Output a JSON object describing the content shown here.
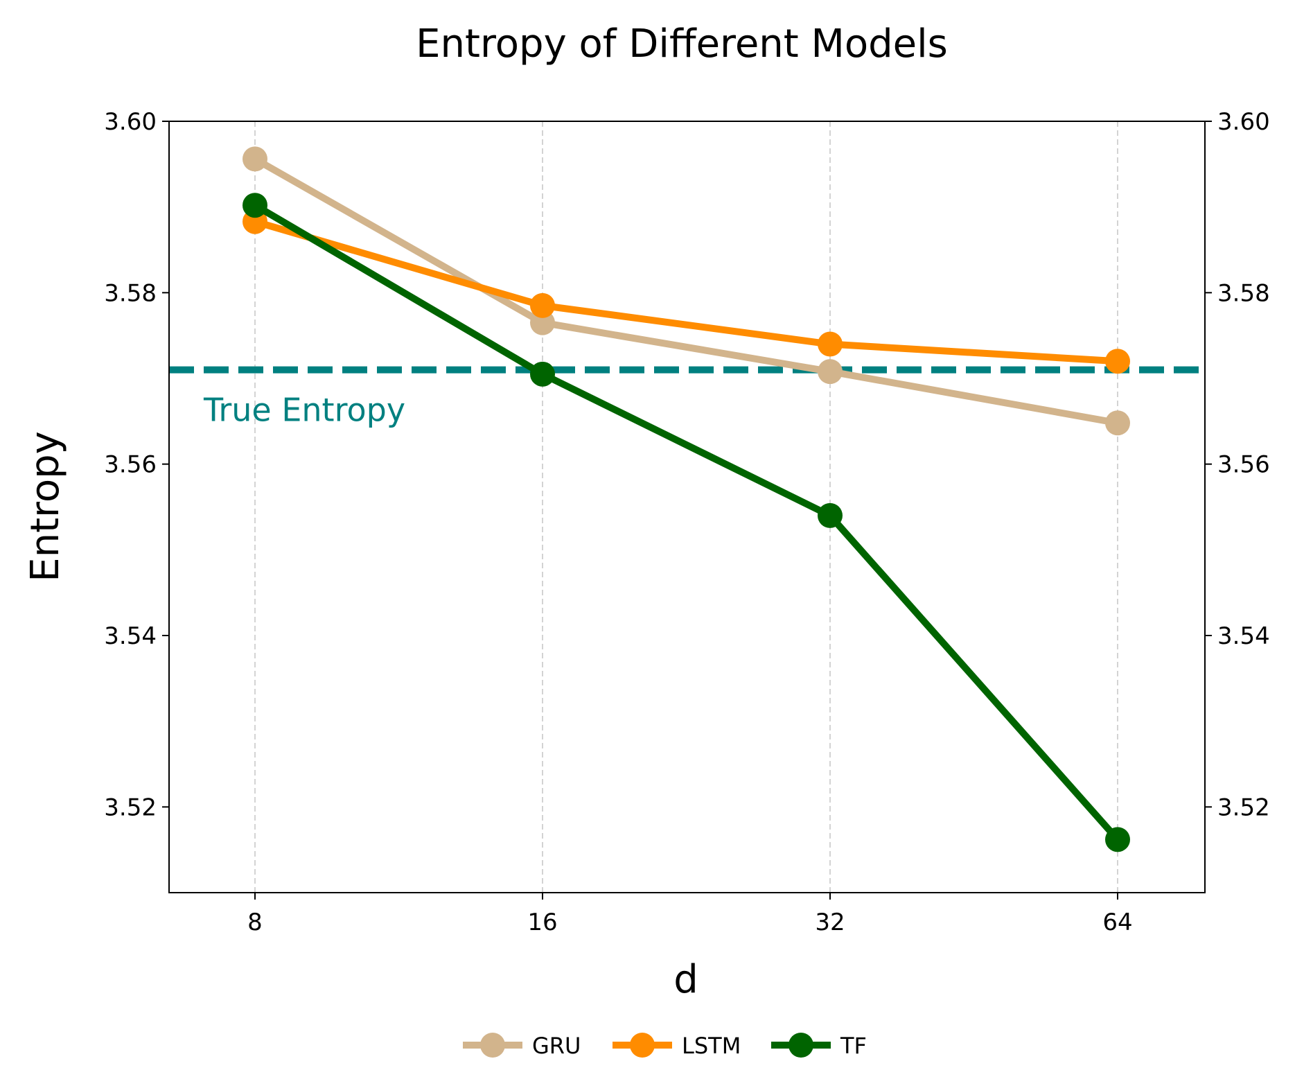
{
  "chart_data": {
    "type": "line",
    "title": "Entropy of Different Models",
    "xlabel": "d",
    "ylabel": "Entropy",
    "categories": [
      "8",
      "16",
      "32",
      "64"
    ],
    "ylim": [
      3.51,
      3.6
    ],
    "yticks": [
      "3.52",
      "3.54",
      "3.56",
      "3.58",
      "3.60"
    ],
    "right_yticks": [
      "3.52",
      "3.54",
      "3.56",
      "3.58",
      "3.60"
    ],
    "grid": "vertical dashed lines at x ticks",
    "legend_position": "bottom-center",
    "reference_line": {
      "value": 3.571,
      "label": "True Entropy",
      "color": "#008080",
      "style": "dashed"
    },
    "series": [
      {
        "name": "GRU",
        "color": "#D2B48C",
        "values": [
          3.5956,
          3.5765,
          3.5708,
          3.5648
        ]
      },
      {
        "name": "LSTM",
        "color": "#FF8C00",
        "values": [
          3.5883,
          3.5785,
          3.574,
          3.572
        ]
      },
      {
        "name": "TF",
        "color": "#006400",
        "values": [
          3.5902,
          3.5705,
          3.554,
          3.5162
        ]
      }
    ]
  }
}
